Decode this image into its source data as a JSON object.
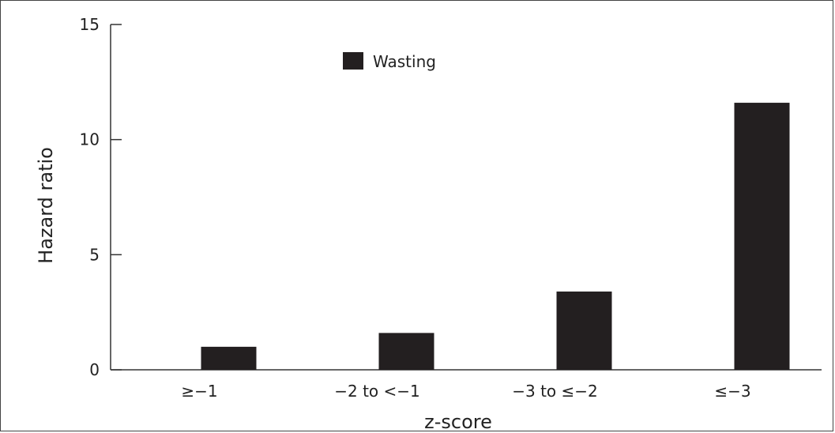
{
  "chart_data": {
    "type": "bar",
    "title": "",
    "xlabel": "z-score",
    "ylabel": "Hazard ratio",
    "categories": [
      "≥−1",
      "−2 to <−1",
      "−3 to ≤−2",
      "≤−3"
    ],
    "series": [
      {
        "name": "Wasting",
        "values": [
          1.0,
          1.6,
          3.4,
          11.6
        ]
      }
    ],
    "ylim": [
      0,
      15
    ],
    "yticks": [
      0,
      5,
      10,
      15
    ],
    "grid": false,
    "legend": "top-center",
    "colors": {
      "bar": "#231f20",
      "axis": "#333333"
    }
  }
}
